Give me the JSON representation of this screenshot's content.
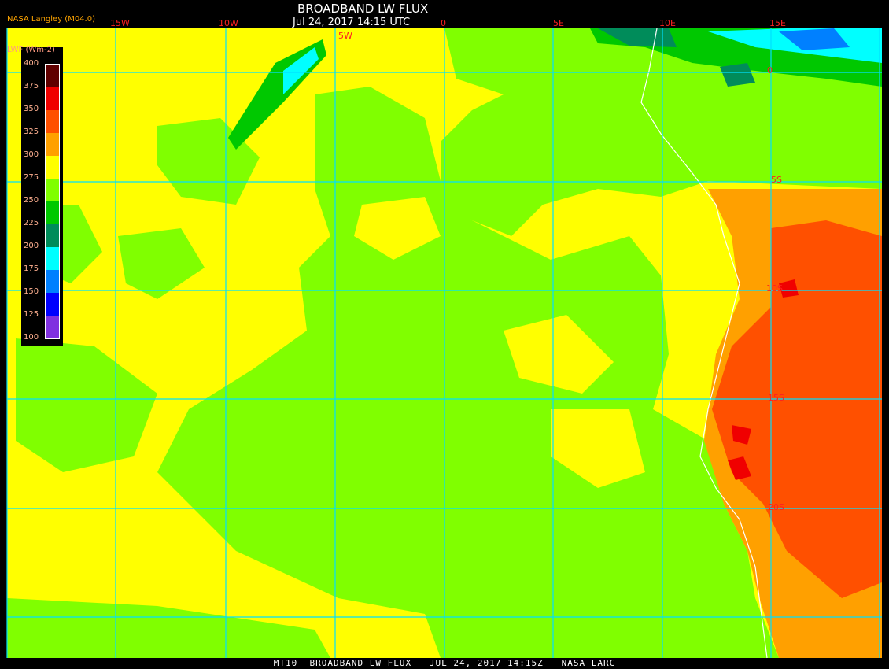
{
  "header": {
    "title": "BROADBAND LW FLUX",
    "subtitle": "Jul 24, 2017 14:15 UTC",
    "provider": "NASA Langley (M04.0)"
  },
  "longitude_labels": [
    "15W",
    "10W",
    "5W",
    "0",
    "5E",
    "10E",
    "15E"
  ],
  "latitude_labels": [
    "0",
    "5S",
    "10S",
    "15S",
    "20S"
  ],
  "legend": {
    "title": "LWF (Wm-2)",
    "ticks": [
      "400",
      "375",
      "350",
      "325",
      "300",
      "275",
      "250",
      "225",
      "200",
      "175",
      "150",
      "125",
      "100"
    ],
    "colors": [
      "#600000",
      "#f00000",
      "#ff5000",
      "#ffa000",
      "#ffff00",
      "#80ff00",
      "#00c800",
      "#008c5a",
      "#00ffff",
      "#0080ff",
      "#0000ff",
      "#8030e0"
    ]
  },
  "footer": "MT10  BROADBAND LW FLUX   JUL 24, 2017 14:15Z   NASA LARC",
  "colors": {
    "grid": "#00e0ff",
    "labels": "#ff2020",
    "background": "#000000"
  }
}
